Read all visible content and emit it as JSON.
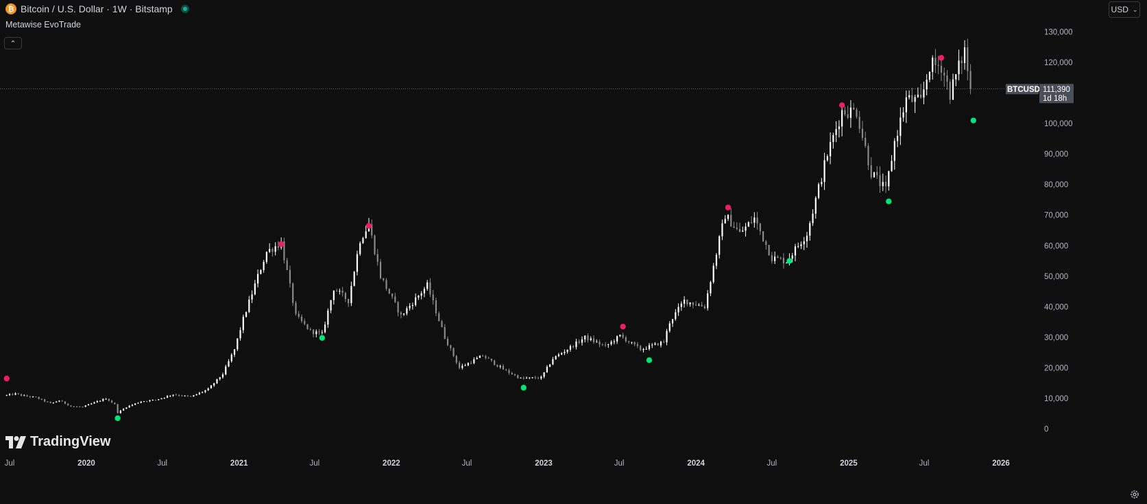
{
  "header": {
    "title": "Bitcoin / U.S. Dollar · 1W · Bitstamp",
    "indicator": "Metawise EvoTrade",
    "currency": "USD"
  },
  "logo": {
    "text": "TradingView"
  },
  "price_label": {
    "symbol": "BTCUSD",
    "price": "111,390",
    "countdown": "1d 18h"
  },
  "colors": {
    "background": "#0f0f0f",
    "candle_up": "#ffffff",
    "candle_down": "#8a8a8a",
    "signal_sell": "#e91e63",
    "signal_buy": "#00e676",
    "price_label_bg": "#4a4f5a"
  },
  "icons": {
    "brand": "bitcoin-icon",
    "status": "market-open-icon",
    "collapse": "chevron-up-icon",
    "dropdown": "chevron-down-icon",
    "settings": "gear-icon"
  },
  "chart_data": {
    "type": "candlestick",
    "timeframe": "1W",
    "ylim": [
      0,
      130000
    ],
    "yticks": [
      0,
      10000,
      20000,
      30000,
      40000,
      50000,
      60000,
      70000,
      80000,
      90000,
      100000,
      110000,
      120000,
      130000
    ],
    "ytick_labels": [
      "0",
      "10,000",
      "20,000",
      "30,000",
      "40,000",
      "50,000",
      "60,000",
      "70,000",
      "80,000",
      "90,000",
      "100,000",
      "110,000",
      "120,000",
      "130,000"
    ],
    "x_tick_labels": [
      "Jul",
      "2020",
      "Jul",
      "2021",
      "Jul",
      "2022",
      "Jul",
      "2023",
      "Jul",
      "2024",
      "Jul",
      "2025",
      "Jul",
      "2026"
    ],
    "last_price": 111390,
    "price_path": [
      [
        "2019-06-24",
        11000
      ],
      [
        "2019-07-15",
        11500
      ],
      [
        "2019-08-05",
        10800
      ],
      [
        "2019-09-02",
        10300
      ],
      [
        "2019-10-07",
        8300
      ],
      [
        "2019-10-28",
        9300
      ],
      [
        "2019-11-25",
        7400
      ],
      [
        "2019-12-23",
        7200
      ],
      [
        "2020-01-20",
        8600
      ],
      [
        "2020-02-17",
        10000
      ],
      [
        "2020-03-09",
        8000
      ],
      [
        "2020-03-16",
        5300
      ],
      [
        "2020-04-06",
        7200
      ],
      [
        "2020-05-11",
        9000
      ],
      [
        "2020-06-15",
        9500
      ],
      [
        "2020-07-27",
        11300
      ],
      [
        "2020-09-07",
        10500
      ],
      [
        "2020-10-19",
        13000
      ],
      [
        "2020-11-23",
        18000
      ],
      [
        "2020-12-21",
        26000
      ],
      [
        "2021-01-11",
        36000
      ],
      [
        "2021-02-15",
        50000
      ],
      [
        "2021-03-08",
        58000
      ],
      [
        "2021-04-12",
        61000
      ],
      [
        "2021-05-17",
        37000
      ],
      [
        "2021-06-21",
        32000
      ],
      [
        "2021-07-19",
        31000
      ],
      [
        "2021-08-16",
        46000
      ],
      [
        "2021-09-20",
        42000
      ],
      [
        "2021-10-18",
        62000
      ],
      [
        "2021-11-08",
        67000
      ],
      [
        "2021-12-06",
        50000
      ],
      [
        "2022-01-24",
        37000
      ],
      [
        "2022-03-28",
        47000
      ],
      [
        "2022-05-09",
        30000
      ],
      [
        "2022-06-13",
        20000
      ],
      [
        "2022-08-08",
        24000
      ],
      [
        "2022-09-26",
        19500
      ],
      [
        "2022-11-07",
        16500
      ],
      [
        "2022-12-26",
        16800
      ],
      [
        "2023-01-23",
        23000
      ],
      [
        "2023-03-20",
        28000
      ],
      [
        "2023-04-10",
        30000
      ],
      [
        "2023-05-29",
        27000
      ],
      [
        "2023-07-03",
        30500
      ],
      [
        "2023-08-21",
        26000
      ],
      [
        "2023-10-16",
        28500
      ],
      [
        "2023-10-30",
        35000
      ],
      [
        "2023-12-04",
        42000
      ],
      [
        "2024-01-22",
        40000
      ],
      [
        "2024-02-26",
        62000
      ],
      [
        "2024-03-11",
        70000
      ],
      [
        "2024-04-15",
        64000
      ],
      [
        "2024-05-20",
        69000
      ],
      [
        "2024-07-01",
        56000
      ],
      [
        "2024-08-05",
        55000
      ],
      [
        "2024-09-23",
        64000
      ],
      [
        "2024-11-11",
        90000
      ],
      [
        "2024-12-16",
        104000
      ],
      [
        "2025-01-20",
        104000
      ],
      [
        "2025-02-24",
        84000
      ],
      [
        "2025-03-31",
        78000
      ],
      [
        "2025-04-21",
        94000
      ],
      [
        "2025-05-19",
        108000
      ],
      [
        "2025-06-23",
        107000
      ],
      [
        "2025-07-14",
        119000
      ],
      [
        "2025-08-11",
        119000
      ],
      [
        "2025-09-01",
        110000
      ],
      [
        "2025-10-06",
        124000
      ],
      [
        "2025-10-20",
        111390
      ]
    ],
    "signals": {
      "sell": [
        {
          "date": "2019-06-24",
          "y": 16500
        },
        {
          "date": "2021-04-12",
          "y": 60500
        },
        {
          "date": "2021-11-08",
          "y": 66500
        },
        {
          "date": "2023-07-10",
          "y": 33500
        },
        {
          "date": "2024-03-18",
          "y": 72500
        },
        {
          "date": "2024-12-16",
          "y": 106000
        },
        {
          "date": "2025-08-11",
          "y": 121500
        }
      ],
      "buy": [
        {
          "date": "2020-03-16",
          "y": 3500
        },
        {
          "date": "2021-07-19",
          "y": 29800
        },
        {
          "date": "2022-11-14",
          "y": 13500
        },
        {
          "date": "2023-09-11",
          "y": 22500
        },
        {
          "date": "2024-08-12",
          "y": 55000
        },
        {
          "date": "2025-04-07",
          "y": 74500
        },
        {
          "date": "2025-10-27",
          "y": 101000
        }
      ]
    }
  }
}
